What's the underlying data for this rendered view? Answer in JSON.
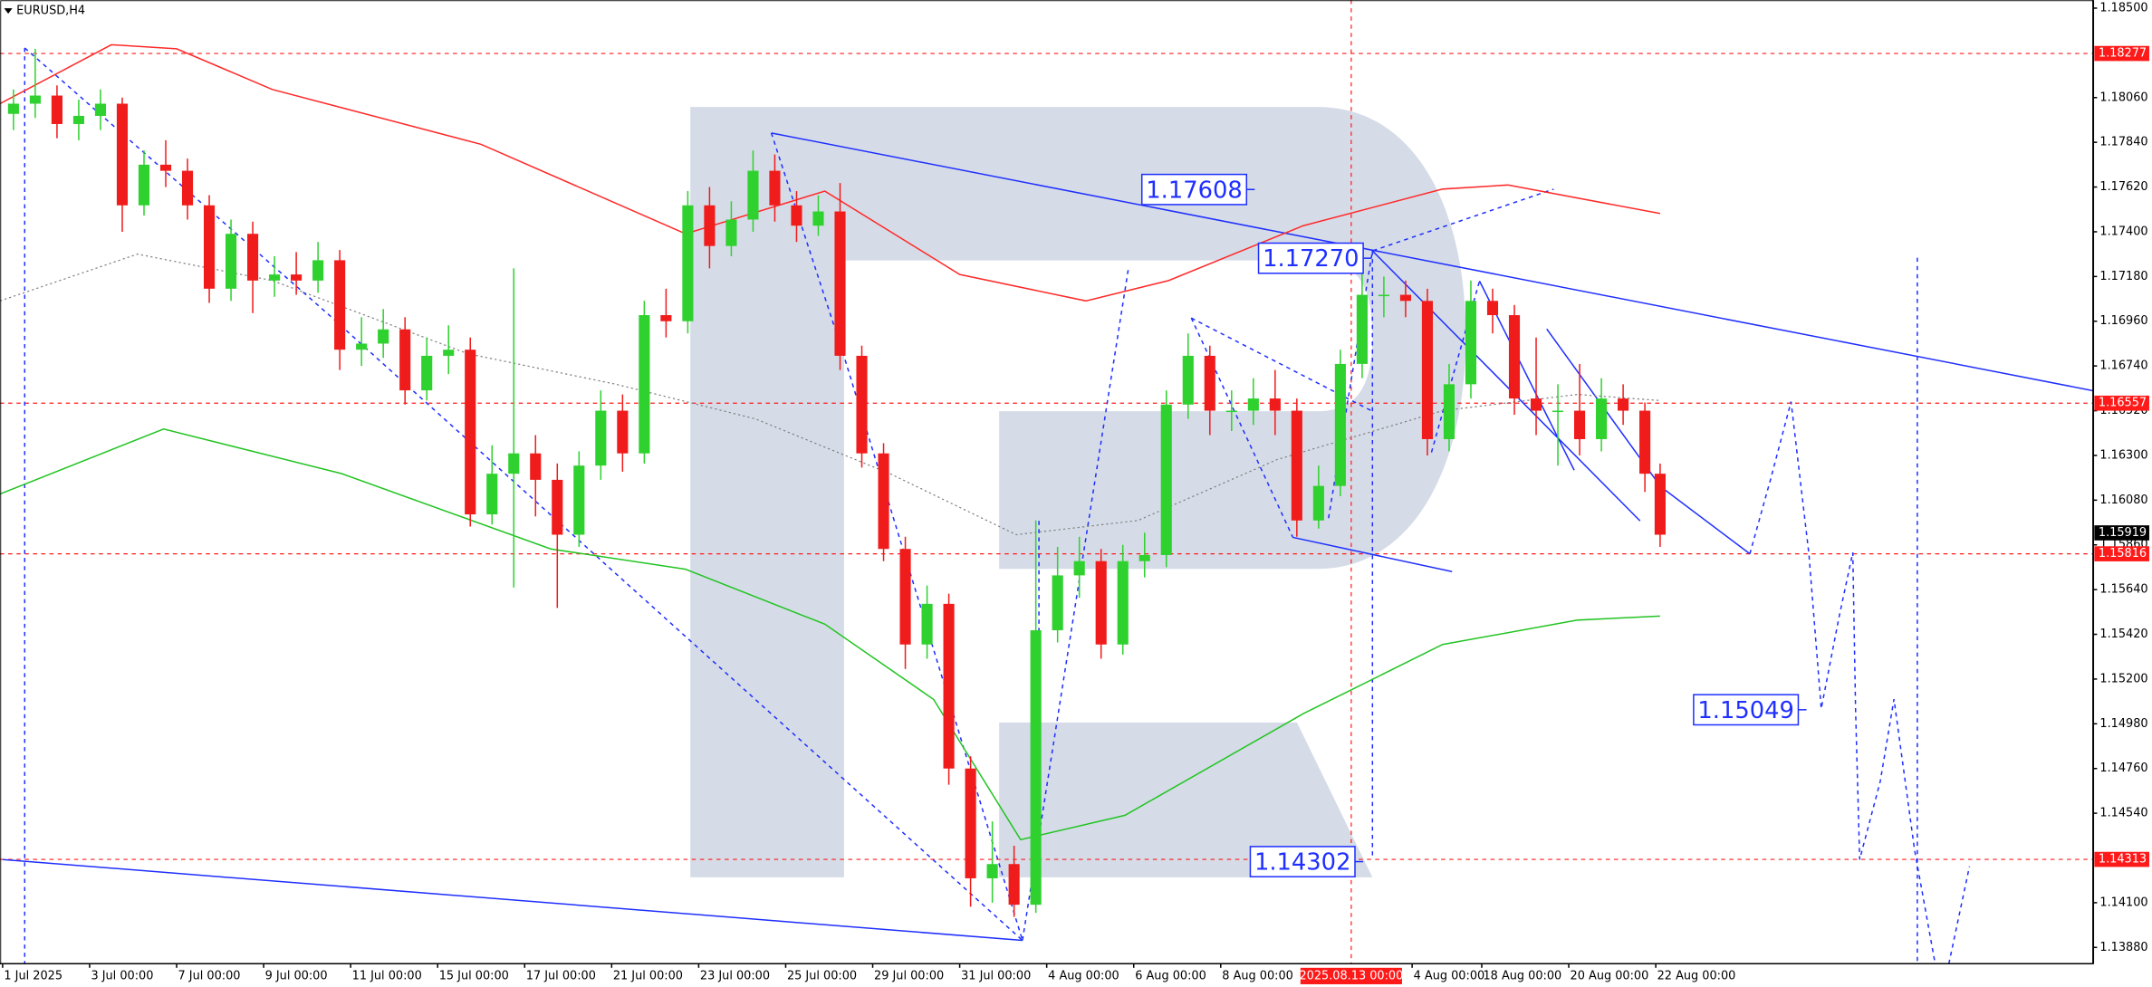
{
  "header": {
    "symbol": "EURUSD,H4"
  },
  "chart_data": {
    "type": "candlestick",
    "up_color": "#2fd12f",
    "down_color": "#f01c1c",
    "xlim": [
      -0.06,
      48.05
    ],
    "ylim": [
      1.138,
      1.1854
    ],
    "x": [
      0.25,
      0.75,
      1.25,
      1.75,
      2.25,
      2.75,
      3.25,
      3.75,
      4.25,
      4.75,
      5.25,
      5.75,
      6.25,
      6.75,
      7.25,
      7.75,
      8.25,
      8.75,
      9.25,
      9.75,
      10.25,
      10.75,
      11.25,
      11.75,
      12.25,
      12.75,
      13.25,
      13.75,
      14.25,
      14.75,
      15.25,
      15.75,
      16.25,
      16.75,
      17.25,
      17.75,
      18.25,
      18.75,
      19.25,
      19.75,
      20.25,
      20.75,
      21.25,
      21.75,
      22.25,
      22.75,
      23.25,
      23.75,
      24.25,
      24.75,
      25.25,
      25.75,
      26.25,
      26.75,
      27.25,
      27.75,
      28.25,
      28.75,
      29.25,
      29.75,
      30.25,
      30.75,
      31.25,
      31.75,
      32.25,
      32.75,
      33.25,
      33.75,
      34.25,
      34.75,
      35.25,
      35.75,
      36.25,
      36.75,
      37.25,
      37.75,
      38.1
    ],
    "open": [
      1.1798,
      1.1803,
      1.1807,
      1.1793,
      1.1797,
      1.1803,
      1.1753,
      1.1773,
      1.177,
      1.1753,
      1.1712,
      1.1739,
      1.1716,
      1.1719,
      1.1716,
      1.1726,
      1.1682,
      1.1685,
      1.1692,
      1.1662,
      1.1679,
      1.1682,
      1.1601,
      1.1621,
      1.1631,
      1.1618,
      1.1591,
      1.1625,
      1.1652,
      1.1631,
      1.1699,
      1.1696,
      1.1753,
      1.1733,
      1.1746,
      1.177,
      1.1753,
      1.1743,
      1.175,
      1.1679,
      1.1631,
      1.1584,
      1.1537,
      1.1557,
      1.1476,
      1.1422,
      1.1429,
      1.1409,
      1.1544,
      1.1571,
      1.1578,
      1.1537,
      1.1578,
      1.1581,
      1.1655,
      1.1679,
      1.1652,
      1.1652,
      1.1658,
      1.1652,
      1.1598,
      1.1615,
      1.1675,
      1.1709,
      1.1709,
      1.1706,
      1.1638,
      1.1665,
      1.1706,
      1.1699,
      1.1658,
      1.1652,
      1.1652,
      1.1638,
      1.1658,
      1.1652,
      1.1621
    ],
    "high": [
      1.181,
      1.183,
      1.1812,
      1.1805,
      1.181,
      1.1806,
      1.178,
      1.1785,
      1.1776,
      1.1758,
      1.1746,
      1.1745,
      1.1728,
      1.173,
      1.1735,
      1.1731,
      1.1698,
      1.1702,
      1.1698,
      1.1688,
      1.1694,
      1.1688,
      1.1635,
      1.1722,
      1.164,
      1.1626,
      1.1632,
      1.1662,
      1.166,
      1.1706,
      1.1712,
      1.176,
      1.1762,
      1.1755,
      1.178,
      1.1778,
      1.176,
      1.1758,
      1.1764,
      1.1684,
      1.1636,
      1.159,
      1.1566,
      1.1562,
      1.1482,
      1.145,
      1.1438,
      1.1598,
      1.1585,
      1.159,
      1.1584,
      1.1586,
      1.1592,
      1.1662,
      1.169,
      1.1684,
      1.1662,
      1.1668,
      1.1672,
      1.1658,
      1.1625,
      1.1682,
      1.1722,
      1.1718,
      1.1716,
      1.1712,
      1.1675,
      1.1716,
      1.1712,
      1.1704,
      1.1688,
      1.1665,
      1.1675,
      1.1668,
      1.1665,
      1.1656,
      1.1626
    ],
    "low": [
      1.179,
      1.1796,
      1.1786,
      1.1785,
      1.179,
      1.174,
      1.1748,
      1.1762,
      1.1746,
      1.1705,
      1.1706,
      1.17,
      1.1708,
      1.1709,
      1.171,
      1.1672,
      1.1674,
      1.1678,
      1.1655,
      1.1657,
      1.167,
      1.1595,
      1.1596,
      1.1565,
      1.16,
      1.1555,
      1.1585,
      1.1618,
      1.1622,
      1.1626,
      1.1688,
      1.169,
      1.1722,
      1.1728,
      1.174,
      1.1745,
      1.1735,
      1.1738,
      1.1672,
      1.1624,
      1.1578,
      1.1525,
      1.153,
      1.1468,
      1.1408,
      1.141,
      1.1403,
      1.1405,
      1.1538,
      1.156,
      1.153,
      1.1532,
      1.157,
      1.1575,
      1.1648,
      1.164,
      1.1642,
      1.1645,
      1.164,
      1.159,
      1.1594,
      1.161,
      1.1668,
      1.1698,
      1.1698,
      1.163,
      1.1632,
      1.1658,
      1.169,
      1.165,
      1.164,
      1.1625,
      1.163,
      1.1632,
      1.1645,
      1.1612,
      1.1585
    ],
    "close": [
      1.1803,
      1.1807,
      1.1793,
      1.1797,
      1.1803,
      1.1753,
      1.1773,
      1.177,
      1.1753,
      1.1712,
      1.1739,
      1.1716,
      1.1719,
      1.1716,
      1.1726,
      1.1682,
      1.1685,
      1.1692,
      1.1662,
      1.1679,
      1.1682,
      1.1601,
      1.1621,
      1.1631,
      1.1618,
      1.1591,
      1.1625,
      1.1652,
      1.1631,
      1.1699,
      1.1696,
      1.1753,
      1.1733,
      1.1746,
      1.177,
      1.1753,
      1.1743,
      1.175,
      1.1679,
      1.1631,
      1.1584,
      1.1537,
      1.1557,
      1.1476,
      1.1422,
      1.1429,
      1.1409,
      1.1544,
      1.1571,
      1.1578,
      1.1537,
      1.1578,
      1.1581,
      1.1655,
      1.1679,
      1.1652,
      1.1652,
      1.1658,
      1.1652,
      1.1598,
      1.1615,
      1.1675,
      1.1709,
      1.1709,
      1.1706,
      1.1638,
      1.1665,
      1.1706,
      1.1699,
      1.1658,
      1.1652,
      1.1652,
      1.1638,
      1.1658,
      1.1652,
      1.1621,
      1.1591
    ],
    "moving_averages": [
      {
        "color": "#ff2a2a",
        "style": "solid",
        "x": [
          -0.06,
          2.5,
          4.0,
          6.2,
          11.0,
          15.7,
          18.9,
          22.0,
          24.9,
          26.8,
          29.9,
          33.1,
          34.6,
          38.1
        ],
        "values": [
          1.1803,
          1.1832,
          1.183,
          1.181,
          1.1783,
          1.1739,
          1.176,
          1.1719,
          1.1706,
          1.1716,
          1.1743,
          1.1761,
          1.1763,
          1.1749
        ]
      },
      {
        "color": "#22c422",
        "style": "solid",
        "x": [
          -0.06,
          3.7,
          7.8,
          12.6,
          15.7,
          18.9,
          21.4,
          23.4,
          25.8,
          29.9,
          33.1,
          36.2,
          38.1
        ],
        "values": [
          1.1611,
          1.1643,
          1.1621,
          1.1584,
          1.1574,
          1.1547,
          1.151,
          1.1441,
          1.1453,
          1.1503,
          1.1537,
          1.1549,
          1.1551
        ]
      },
      {
        "color": "#808080",
        "style": "dotted",
        "x": [
          -0.06,
          3.1,
          6.2,
          10.7,
          14.1,
          17.3,
          20.4,
          23.3,
          26.1,
          29.3,
          33.1,
          36.2,
          38.1
        ],
        "values": [
          1.1706,
          1.1729,
          1.1716,
          1.168,
          1.1665,
          1.1648,
          1.1621,
          1.1591,
          1.1598,
          1.1628,
          1.1652,
          1.166,
          1.1657
        ]
      }
    ],
    "yticks": [
      {
        "value": 1.185,
        "label": "1.18500"
      },
      {
        "value": 1.1806,
        "label": "1.18060"
      },
      {
        "value": 1.1784,
        "label": "1.17840"
      },
      {
        "value": 1.1762,
        "label": "1.17620"
      },
      {
        "value": 1.174,
        "label": "1.17400"
      },
      {
        "value": 1.1718,
        "label": "1.17180"
      },
      {
        "value": 1.1696,
        "label": "1.16960"
      },
      {
        "value": 1.1674,
        "label": "1.16740"
      },
      {
        "value": 1.1652,
        "label": "1.16520"
      },
      {
        "value": 1.163,
        "label": "1.16300"
      },
      {
        "value": 1.1608,
        "label": "1.16080"
      },
      {
        "value": 1.1586,
        "label": "1.15860"
      },
      {
        "value": 1.1564,
        "label": "1.15640"
      },
      {
        "value": 1.1542,
        "label": "1.15420"
      },
      {
        "value": 1.152,
        "label": "1.15200"
      },
      {
        "value": 1.1498,
        "label": "1.14980"
      },
      {
        "value": 1.1476,
        "label": "1.14760"
      },
      {
        "value": 1.1454,
        "label": "1.14540"
      },
      {
        "value": 1.141,
        "label": "1.14100"
      },
      {
        "value": 1.1388,
        "label": "1.13880"
      }
    ],
    "xticks": [
      {
        "value": 0,
        "label": "1 Jul 2025"
      },
      {
        "value": 2,
        "label": "3 Jul 00:00"
      },
      {
        "value": 4,
        "label": "7 Jul 00:00"
      },
      {
        "value": 6,
        "label": "9 Jul 00:00"
      },
      {
        "value": 8,
        "label": "11 Jul 00:00"
      },
      {
        "value": 10,
        "label": "15 Jul 00:00"
      },
      {
        "value": 12,
        "label": "17 Jul 00:00"
      },
      {
        "value": 14,
        "label": "21 Jul 00:00"
      },
      {
        "value": 16,
        "label": "23 Jul 00:00"
      },
      {
        "value": 18,
        "label": "25 Jul 00:00"
      },
      {
        "value": 20,
        "label": "29 Jul 00:00"
      },
      {
        "value": 22,
        "label": "31 Jul 00:00"
      },
      {
        "value": 24,
        "label": "4 Aug 00:00"
      },
      {
        "value": 26,
        "label": "6 Aug 00:00"
      },
      {
        "value": 28,
        "label": "8 Aug 00:00"
      },
      {
        "value": 32.4,
        "label": "4 Aug 00:00"
      },
      {
        "value": 34,
        "label": "18 Aug 00:00"
      },
      {
        "value": 36,
        "label": "20 Aug 00:00"
      },
      {
        "value": 38,
        "label": "22 Aug 00:00"
      }
    ],
    "levels": {
      "color": "#ff1a1a",
      "values": [
        1.18277,
        1.16557,
        1.15816,
        1.14313
      ]
    },
    "current_price": {
      "value": 1.15919
    },
    "crosshair": {
      "value": 31,
      "label": "2025.08.13 00:00"
    },
    "annotations": [
      1.17608,
      {
        "value": 1.1727,
        "label": "1.17270"
      },
      1.15049,
      1.14302
    ]
  }
}
